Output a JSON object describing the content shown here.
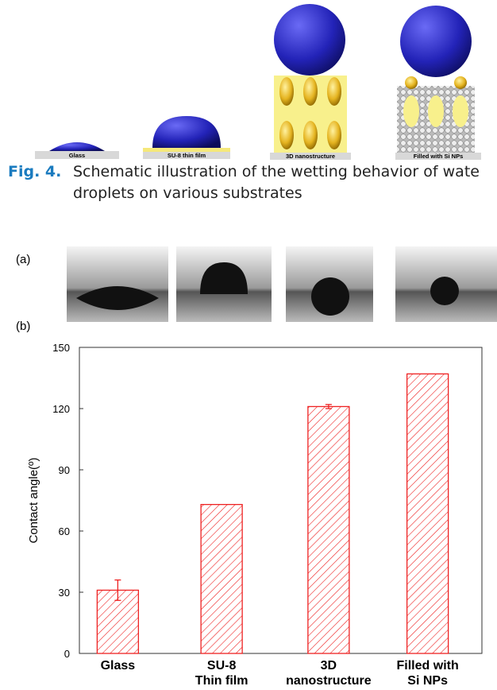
{
  "schematic": {
    "labels": [
      "Glass",
      "SU-8 thin film",
      "3D nanostructure",
      "Filled with Si NPs"
    ]
  },
  "caption": {
    "label": "Fig. 4.",
    "text": "Schematic illustration of the wetting behavior of wate droplets on various substrates"
  },
  "panel_labels": [
    "(a)",
    "(b)"
  ],
  "chart_data": {
    "type": "bar",
    "y_label": "Contact angle(º)",
    "categories": [
      "Glass",
      "SU-8\nThin film",
      "3D\nnanostructure",
      "Filled with\nSi NPs"
    ],
    "values": [
      31,
      73,
      121,
      137
    ],
    "errors": [
      5,
      null,
      1,
      null
    ],
    "color": "#ee2222",
    "ylim": [
      0,
      150
    ],
    "yticks": [
      0,
      30,
      60,
      90,
      120,
      150
    ]
  }
}
